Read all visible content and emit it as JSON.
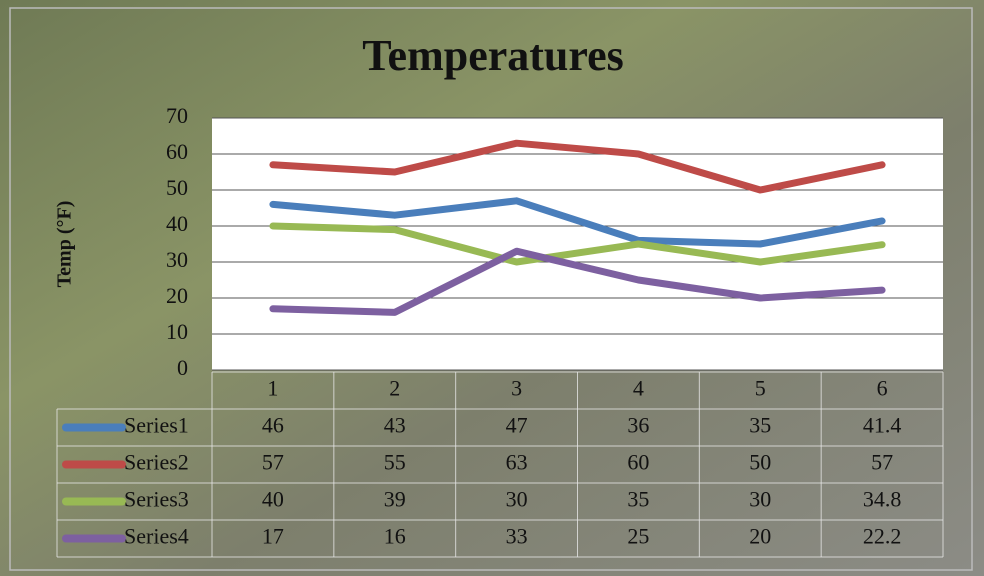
{
  "chart_data": {
    "type": "line",
    "title": "Temperatures",
    "y_label": "Temp (°F)",
    "categories": [
      "1",
      "2",
      "3",
      "4",
      "5",
      "6"
    ],
    "series": [
      {
        "name": "Series1",
        "color": "#4a7ebb",
        "values": [
          46,
          43,
          47,
          36,
          35,
          41.4
        ]
      },
      {
        "name": "Series2",
        "color": "#be4b48",
        "values": [
          57,
          55,
          63,
          60,
          50,
          57
        ]
      },
      {
        "name": "Series3",
        "color": "#98b954",
        "values": [
          40,
          39,
          30,
          35,
          30,
          34.8
        ]
      },
      {
        "name": "Series4",
        "color": "#7d60a0",
        "values": [
          17,
          16,
          33,
          25,
          20,
          22.2
        ]
      }
    ],
    "ylim": [
      0,
      70
    ],
    "yticks": [
      0,
      10,
      20,
      30,
      40,
      50,
      60,
      70
    ],
    "grid": true,
    "data_table": true
  }
}
